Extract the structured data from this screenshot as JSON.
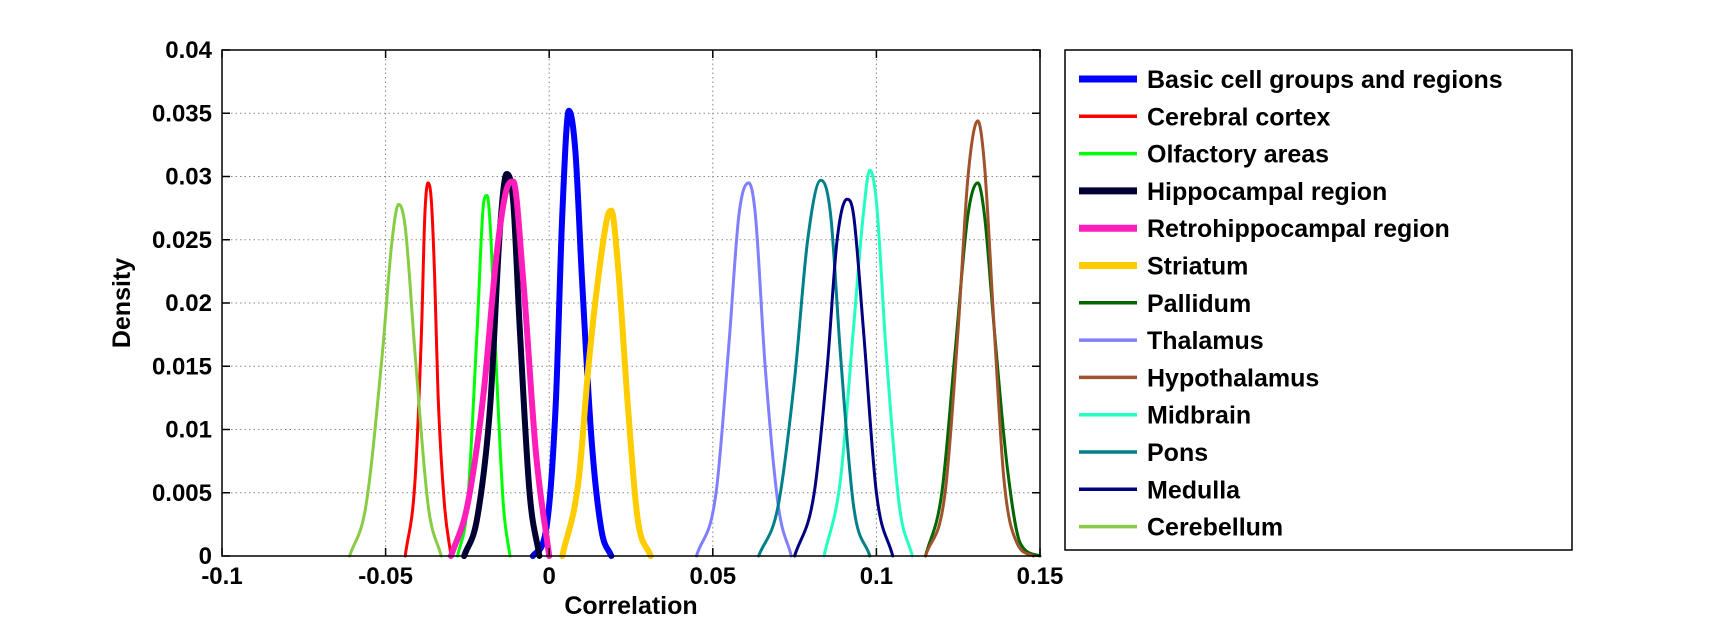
{
  "chart_data": {
    "type": "line",
    "xlabel": "Correlation",
    "ylabel": "Density",
    "xlim": [
      -0.1,
      0.15
    ],
    "ylim": [
      0,
      0.04
    ],
    "xticks": [
      -0.1,
      -0.05,
      0,
      0.05,
      0.1,
      0.15
    ],
    "xtick_labels": [
      "-0.1",
      "-0.05",
      "0",
      "0.05",
      "0.1",
      "0.15"
    ],
    "yticks": [
      0,
      0.005,
      0.01,
      0.015,
      0.02,
      0.025,
      0.03,
      0.035,
      0.04
    ],
    "ytick_labels": [
      "0",
      "0.005",
      "0.01",
      "0.015",
      "0.02",
      "0.025",
      "0.03",
      "0.035",
      "0.04"
    ],
    "grid": true,
    "legend_position": "outside-right",
    "series": [
      {
        "name": "Basic cell groups and regions",
        "color": "#0000ff",
        "width": "thick",
        "x": [
          -0.005,
          -0.001,
          0.002,
          0.004,
          0.006,
          0.008,
          0.01,
          0.013,
          0.016,
          0.019
        ],
        "y": [
          0,
          0.002,
          0.012,
          0.027,
          0.0352,
          0.032,
          0.022,
          0.009,
          0.002,
          0
        ]
      },
      {
        "name": "Cerebral cortex",
        "color": "#ff0000",
        "width": "thin",
        "x": [
          -0.044,
          -0.041,
          -0.039,
          -0.038,
          -0.037,
          -0.036,
          -0.035,
          -0.034,
          -0.032,
          -0.03
        ],
        "y": [
          0,
          0.006,
          0.018,
          0.027,
          0.0295,
          0.028,
          0.022,
          0.013,
          0.004,
          0
        ]
      },
      {
        "name": "Olfactory areas",
        "color": "#00ff00",
        "width": "thin",
        "x": [
          -0.028,
          -0.025,
          -0.022,
          -0.02,
          -0.019,
          -0.018,
          -0.016,
          -0.014,
          -0.012
        ],
        "y": [
          0,
          0.004,
          0.018,
          0.028,
          0.0285,
          0.026,
          0.014,
          0.004,
          0
        ]
      },
      {
        "name": "Hippocampal region",
        "color": "#000033",
        "width": "thick",
        "x": [
          -0.026,
          -0.022,
          -0.018,
          -0.015,
          -0.013,
          -0.011,
          -0.009,
          -0.006,
          -0.003
        ],
        "y": [
          0,
          0.003,
          0.012,
          0.026,
          0.0302,
          0.028,
          0.018,
          0.005,
          0
        ]
      },
      {
        "name": "Retrohippocampal region",
        "color": "#ff1dbb",
        "width": "thick",
        "x": [
          -0.03,
          -0.025,
          -0.02,
          -0.016,
          -0.013,
          -0.011,
          -0.008,
          -0.004,
          0.0
        ],
        "y": [
          0,
          0.004,
          0.013,
          0.024,
          0.029,
          0.0296,
          0.022,
          0.008,
          0
        ]
      },
      {
        "name": "Striatum",
        "color": "#ffcc00",
        "width": "thick",
        "x": [
          0.004,
          0.009,
          0.012,
          0.015,
          0.018,
          0.019,
          0.021,
          0.024,
          0.027,
          0.031
        ],
        "y": [
          0,
          0.006,
          0.015,
          0.022,
          0.027,
          0.0273,
          0.023,
          0.012,
          0.003,
          0
        ]
      },
      {
        "name": "Pallidum",
        "color": "#006600",
        "width": "thin",
        "x": [
          0.115,
          0.12,
          0.124,
          0.128,
          0.131,
          0.133,
          0.136,
          0.14,
          0.144,
          0.15
        ],
        "y": [
          0,
          0.005,
          0.016,
          0.027,
          0.0295,
          0.027,
          0.018,
          0.007,
          0.001,
          0
        ]
      },
      {
        "name": "Thalamus",
        "color": "#8080ff",
        "width": "thin",
        "x": [
          0.045,
          0.051,
          0.055,
          0.058,
          0.061,
          0.063,
          0.066,
          0.07,
          0.074
        ],
        "y": [
          0,
          0.005,
          0.017,
          0.027,
          0.0295,
          0.027,
          0.015,
          0.004,
          0
        ]
      },
      {
        "name": "Hypothalamus",
        "color": "#a0522d",
        "width": "thin",
        "x": [
          0.115,
          0.121,
          0.125,
          0.128,
          0.131,
          0.133,
          0.136,
          0.139,
          0.143,
          0.148
        ],
        "y": [
          0,
          0.005,
          0.018,
          0.03,
          0.0344,
          0.031,
          0.018,
          0.006,
          0.001,
          0
        ]
      },
      {
        "name": "Midbrain",
        "color": "#22ffc0",
        "width": "thin",
        "x": [
          0.084,
          0.089,
          0.093,
          0.096,
          0.098,
          0.1,
          0.103,
          0.107,
          0.111
        ],
        "y": [
          0,
          0.006,
          0.018,
          0.027,
          0.0305,
          0.028,
          0.016,
          0.004,
          0
        ]
      },
      {
        "name": "Pons",
        "color": "#00808a",
        "width": "thin",
        "x": [
          0.064,
          0.07,
          0.075,
          0.079,
          0.083,
          0.086,
          0.089,
          0.093,
          0.098
        ],
        "y": [
          0,
          0.004,
          0.014,
          0.025,
          0.0297,
          0.027,
          0.016,
          0.004,
          0
        ]
      },
      {
        "name": "Medulla",
        "color": "#000080",
        "width": "thin",
        "x": [
          0.075,
          0.081,
          0.085,
          0.088,
          0.091,
          0.093,
          0.096,
          0.1,
          0.105
        ],
        "y": [
          0,
          0.005,
          0.015,
          0.025,
          0.0282,
          0.027,
          0.018,
          0.005,
          0
        ]
      },
      {
        "name": "Cerebellum",
        "color": "#88cc44",
        "width": "thin",
        "x": [
          -0.061,
          -0.056,
          -0.051,
          -0.048,
          -0.046,
          -0.044,
          -0.041,
          -0.037,
          -0.033
        ],
        "y": [
          0,
          0.004,
          0.016,
          0.025,
          0.0278,
          0.026,
          0.016,
          0.004,
          0
        ]
      }
    ]
  }
}
